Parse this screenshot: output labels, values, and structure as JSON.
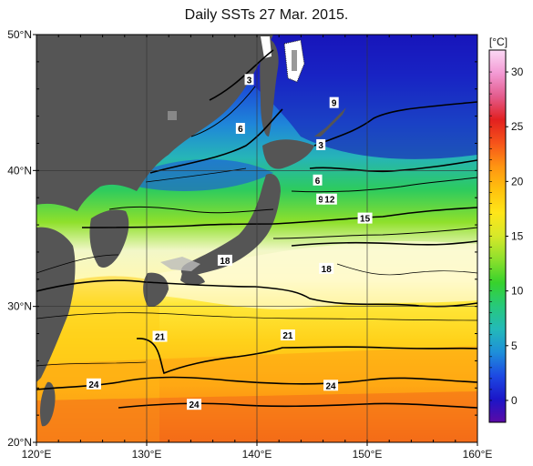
{
  "title": "Daily SSTs 27 Mar. 2015.",
  "colorbar": {
    "unit_label": "[°C]",
    "ticks": [
      "30",
      "25",
      "20",
      "15",
      "10",
      "5",
      "0"
    ],
    "range": [
      -2,
      32
    ],
    "stops": [
      "#5b0aa6",
      "#1b16c8",
      "#1d49e3",
      "#1e8fd9",
      "#23b9b9",
      "#27c97a",
      "#37d22c",
      "#8ee02c",
      "#d6e82a",
      "#ffe619",
      "#ffc10e",
      "#ff9412",
      "#f6541a",
      "#e22020",
      "#e35b8c",
      "#f39ad4",
      "#fbd9f5"
    ]
  },
  "axes": {
    "x_ticks": [
      "120°E",
      "130°E",
      "140°E",
      "150°E",
      "160°E"
    ],
    "y_ticks": [
      "50°N",
      "40°N",
      "30°N",
      "20°N"
    ]
  },
  "contour_labels": [
    {
      "text": "3",
      "lon": 139.3,
      "lat": 46.7
    },
    {
      "text": "6",
      "lon": 138.5,
      "lat": 43.1
    },
    {
      "text": "9",
      "lon": 147.0,
      "lat": 45.0
    },
    {
      "text": "3",
      "lon": 145.8,
      "lat": 41.9
    },
    {
      "text": "6",
      "lon": 145.5,
      "lat": 39.3
    },
    {
      "text": "9",
      "lon": 145.8,
      "lat": 37.9
    },
    {
      "text": "12",
      "lon": 146.6,
      "lat": 37.9
    },
    {
      "text": "15",
      "lon": 149.8,
      "lat": 36.5
    },
    {
      "text": "18",
      "lon": 137.1,
      "lat": 33.4
    },
    {
      "text": "18",
      "lon": 146.3,
      "lat": 32.8
    },
    {
      "text": "21",
      "lon": 131.2,
      "lat": 27.8
    },
    {
      "text": "21",
      "lon": 142.8,
      "lat": 27.9
    },
    {
      "text": "24",
      "lon": 125.2,
      "lat": 24.3
    },
    {
      "text": "24",
      "lon": 146.7,
      "lat": 24.2
    },
    {
      "text": "24",
      "lon": 134.3,
      "lat": 22.8
    }
  ],
  "colors": {
    "land": "#555555",
    "snow_ice": "#ffffff",
    "grid": "#333333",
    "contour": "#000000"
  }
}
